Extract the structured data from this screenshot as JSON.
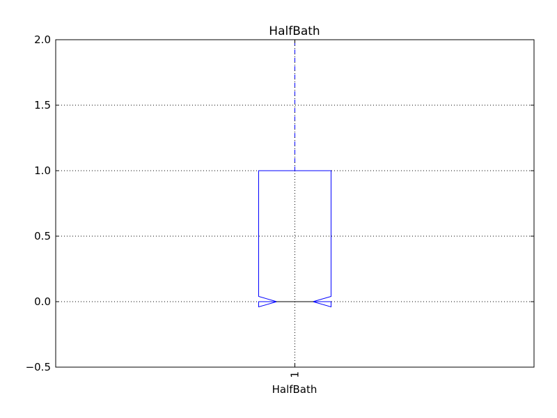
{
  "chart_data": {
    "type": "box",
    "title": "HalfBath",
    "xlabel": "HalfBath",
    "ylabel": "",
    "ylim": [
      -0.5,
      2.0
    ],
    "yticks": [
      -0.5,
      0.0,
      0.5,
      1.0,
      1.5,
      2.0
    ],
    "ytick_labels": [
      "−0.5",
      "0.0",
      "0.5",
      "1.0",
      "1.5",
      "2.0"
    ],
    "xtick_labels": [
      "1"
    ],
    "grid": true,
    "notched": true,
    "series": [
      {
        "q1": 0.0,
        "median": 0.0,
        "q3": 1.0,
        "whisker_low": 0.0,
        "whisker_high": 2.0,
        "notch_low": -0.04,
        "notch_high": 0.04
      }
    ],
    "colors": {
      "box": "#0000ff",
      "whisker": "#0000ff",
      "median": "#ff0000",
      "cap": "#000000",
      "grid": "#000000",
      "axes": "#000000"
    }
  }
}
